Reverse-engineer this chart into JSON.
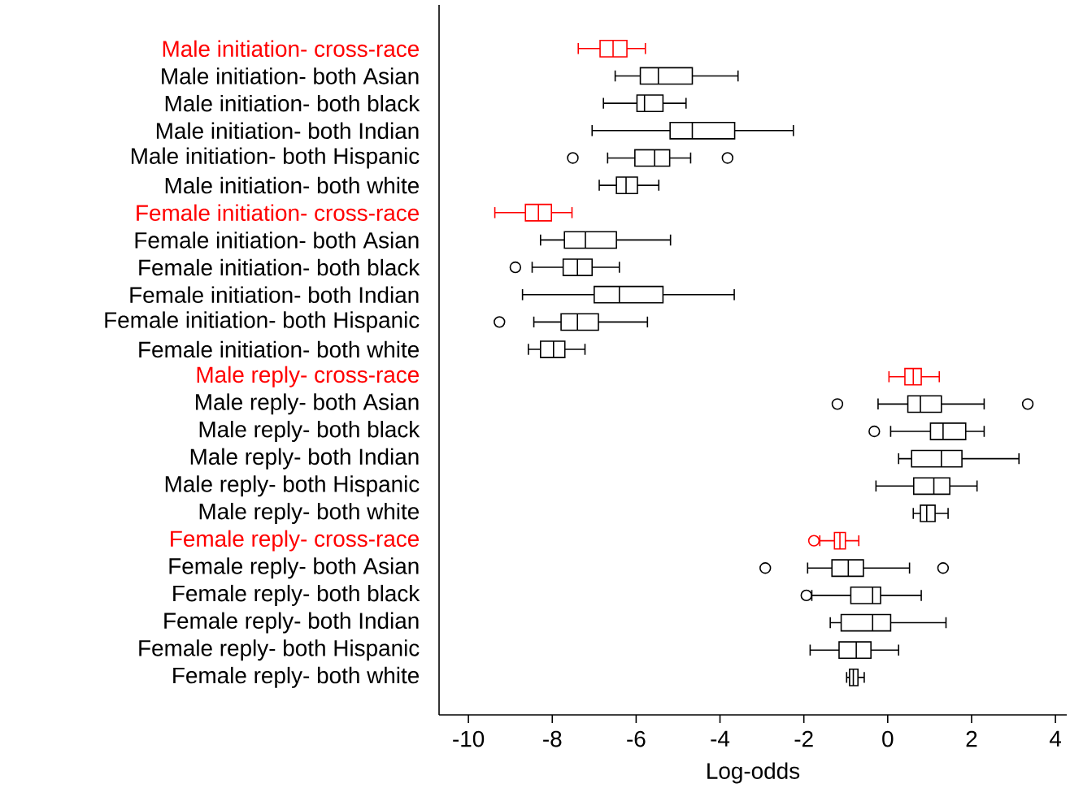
{
  "chart_data": {
    "type": "box",
    "orientation": "horizontal",
    "xlabel": "Log-odds",
    "xlim": [
      -10.7,
      4.27
    ],
    "xticks": [
      -10,
      -8,
      -6,
      -4,
      -2,
      0,
      2,
      4
    ],
    "categories": [
      "Male initiation- cross-race",
      "Male initiation- both Asian",
      "Male initiation- both black",
      "Male initiation- both Indian",
      "Male initiation- both Hispanic",
      "Male initiation- both white",
      "Female initiation- cross-race",
      "Female initiation- both Asian",
      "Female initiation- both black",
      "Female initiation- both Indian",
      "Female initiation- both Hispanic",
      "Female initiation- both white",
      "Male reply- cross-race",
      "Male reply- both Asian",
      "Male reply- both black",
      "Male reply- both Indian",
      "Male reply- both Hispanic",
      "Male reply- both white",
      "Female reply- cross-race",
      "Female reply- both Asian",
      "Female reply- both black",
      "Female reply- both Indian",
      "Female reply- both Hispanic",
      "Female reply- both white"
    ],
    "colors": [
      "#ff0000",
      "#000000",
      "#000000",
      "#000000",
      "#000000",
      "#000000",
      "#ff0000",
      "#000000",
      "#000000",
      "#000000",
      "#000000",
      "#000000",
      "#ff0000",
      "#000000",
      "#000000",
      "#000000",
      "#000000",
      "#000000",
      "#ff0000",
      "#000000",
      "#000000",
      "#000000",
      "#000000",
      "#000000"
    ],
    "boxes": [
      {
        "low": -7.38,
        "q1": -6.86,
        "median": -6.55,
        "q3": -6.22,
        "high": -5.78
      },
      {
        "low": -6.5,
        "q1": -5.9,
        "median": -5.47,
        "q3": -4.66,
        "high": -3.57
      },
      {
        "low": -6.78,
        "q1": -5.98,
        "median": -5.8,
        "q3": -5.36,
        "high": -4.81
      },
      {
        "low": -7.05,
        "q1": -5.19,
        "median": -4.66,
        "q3": -3.65,
        "high": -2.25
      },
      {
        "low": -6.68,
        "q1": -6.03,
        "median": -5.56,
        "q3": -5.2,
        "high": -4.7,
        "outliers": [
          -7.51,
          -3.82
        ]
      },
      {
        "low": -6.88,
        "q1": -6.47,
        "median": -6.24,
        "q3": -5.97,
        "high": -5.46
      },
      {
        "low": -9.37,
        "q1": -8.64,
        "median": -8.33,
        "q3": -8.02,
        "high": -7.53
      },
      {
        "low": -8.28,
        "q1": -7.71,
        "median": -7.21,
        "q3": -6.47,
        "high": -5.18
      },
      {
        "low": -8.48,
        "q1": -7.74,
        "median": -7.4,
        "q3": -7.05,
        "high": -6.4,
        "outliers": [
          -8.88
        ]
      },
      {
        "low": -8.71,
        "q1": -7.0,
        "median": -6.4,
        "q3": -5.36,
        "high": -3.66
      },
      {
        "low": -8.44,
        "q1": -7.79,
        "median": -7.4,
        "q3": -6.9,
        "high": -5.73,
        "outliers": [
          -9.26
        ]
      },
      {
        "low": -8.57,
        "q1": -8.28,
        "median": -7.97,
        "q3": -7.7,
        "high": -7.22
      },
      {
        "low": 0.03,
        "q1": 0.41,
        "median": 0.61,
        "q3": 0.8,
        "high": 1.23
      },
      {
        "low": -0.23,
        "q1": 0.48,
        "median": 0.78,
        "q3": 1.28,
        "high": 2.3,
        "outliers": [
          -1.2,
          3.34
        ]
      },
      {
        "low": 0.07,
        "q1": 1.02,
        "median": 1.32,
        "q3": 1.86,
        "high": 2.3,
        "outliers": [
          -0.32
        ]
      },
      {
        "low": 0.26,
        "q1": 0.57,
        "median": 1.28,
        "q3": 1.77,
        "high": 3.13
      },
      {
        "low": -0.28,
        "q1": 0.62,
        "median": 1.1,
        "q3": 1.48,
        "high": 2.13
      },
      {
        "low": 0.61,
        "q1": 0.78,
        "median": 0.93,
        "q3": 1.13,
        "high": 1.44
      },
      {
        "low": -1.62,
        "q1": -1.27,
        "median": -1.14,
        "q3": -1.01,
        "high": -0.69,
        "outliers": [
          -1.76
        ]
      },
      {
        "low": -1.91,
        "q1": -1.33,
        "median": -0.94,
        "q3": -0.58,
        "high": 0.52,
        "outliers": [
          -2.92,
          1.32
        ]
      },
      {
        "low": -1.81,
        "q1": -0.88,
        "median": -0.36,
        "q3": -0.17,
        "high": 0.8,
        "outliers": [
          -1.94
        ]
      },
      {
        "low": -1.37,
        "q1": -1.11,
        "median": -0.36,
        "q3": 0.07,
        "high": 1.39
      },
      {
        "low": -1.85,
        "q1": -1.16,
        "median": -0.75,
        "q3": -0.4,
        "high": 0.26
      },
      {
        "low": -0.98,
        "q1": -0.91,
        "median": -0.82,
        "q3": -0.71,
        "high": -0.56
      }
    ]
  }
}
